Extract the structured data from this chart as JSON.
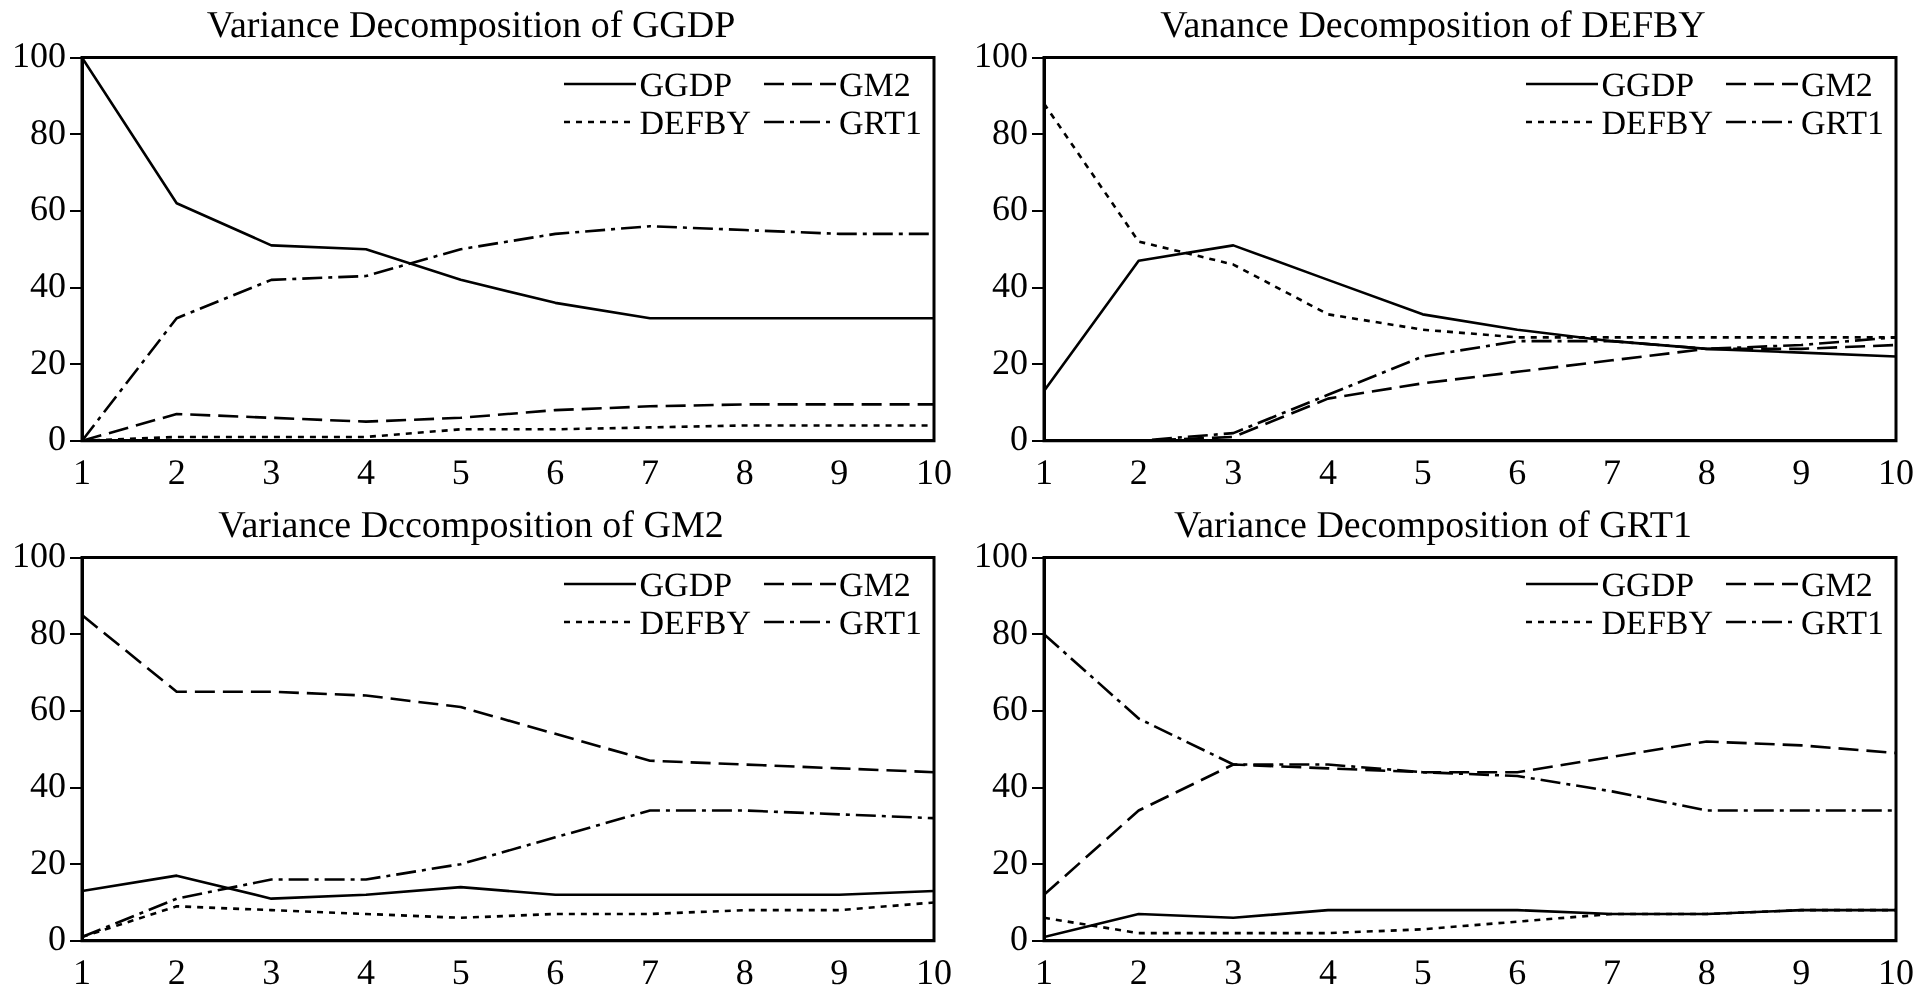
{
  "chart_data": [
    {
      "type": "line",
      "title": "Variance Decomposition of GGDP",
      "x": [
        1,
        2,
        3,
        4,
        5,
        6,
        7,
        8,
        9,
        10
      ],
      "xlim": [
        1,
        10
      ],
      "xticks": [
        1,
        2,
        3,
        4,
        5,
        6,
        7,
        8,
        9,
        10
      ],
      "ylim": [
        0,
        100
      ],
      "yticks": [
        0,
        20,
        40,
        60,
        80,
        100
      ],
      "grid": false,
      "legend": "top right",
      "marker": "none",
      "series": [
        {
          "name": "GGDP",
          "color": "#000000",
          "line_style": "solid",
          "values": [
            100,
            62,
            51,
            50,
            42,
            36,
            32,
            32,
            32,
            32
          ]
        },
        {
          "name": "GM2",
          "color": "#000000",
          "line_style": "dashed",
          "values": [
            0,
            7,
            6,
            5,
            6,
            8,
            9,
            9.5,
            9.5,
            9.5
          ]
        },
        {
          "name": "DEFBY",
          "color": "#000000",
          "line_style": "dotted",
          "values": [
            0,
            1,
            1,
            1,
            3,
            3,
            3.5,
            4,
            4,
            4
          ]
        },
        {
          "name": "GRT1",
          "color": "#000000",
          "line_style": "dashdot",
          "values": [
            0,
            32,
            42,
            43,
            50,
            54,
            56,
            55,
            54,
            54
          ]
        }
      ]
    },
    {
      "type": "line",
      "title": "Vanance Decomposition of DEFBY",
      "x": [
        1,
        2,
        3,
        4,
        5,
        6,
        7,
        8,
        9,
        10
      ],
      "xlim": [
        1,
        10
      ],
      "xticks": [
        1,
        2,
        3,
        4,
        5,
        6,
        7,
        8,
        9,
        10
      ],
      "ylim": [
        0,
        100
      ],
      "yticks": [
        0,
        20,
        40,
        60,
        80,
        100
      ],
      "grid": false,
      "legend": "top right",
      "marker": "none",
      "series": [
        {
          "name": "GGDP",
          "color": "#000000",
          "line_style": "solid",
          "values": [
            13,
            47,
            51,
            42,
            33,
            29,
            26,
            24,
            23,
            22
          ]
        },
        {
          "name": "GM2",
          "color": "#000000",
          "line_style": "dashed",
          "values": [
            0,
            0,
            1,
            11,
            15,
            18,
            21,
            24,
            24,
            25
          ]
        },
        {
          "name": "DEFBY",
          "color": "#000000",
          "line_style": "dotted",
          "values": [
            88,
            52,
            46,
            33,
            29,
            27,
            27,
            27,
            27,
            27
          ]
        },
        {
          "name": "GRT1",
          "color": "#000000",
          "line_style": "dashdot",
          "values": [
            0,
            0,
            2,
            12,
            22,
            26,
            26,
            24,
            25,
            27
          ]
        }
      ]
    },
    {
      "type": "line",
      "title": "Variance Dccomposition of GM2",
      "x": [
        1,
        2,
        3,
        4,
        5,
        6,
        7,
        8,
        9,
        10
      ],
      "xlim": [
        1,
        10
      ],
      "xticks": [
        1,
        2,
        3,
        4,
        5,
        6,
        7,
        8,
        9,
        10
      ],
      "ylim": [
        0,
        100
      ],
      "yticks": [
        0,
        20,
        40,
        60,
        80,
        100
      ],
      "grid": false,
      "legend": "top right",
      "marker": "none",
      "series": [
        {
          "name": "GGDP",
          "color": "#000000",
          "line_style": "solid",
          "values": [
            13,
            17,
            11,
            12,
            14,
            12,
            12,
            12,
            12,
            13
          ]
        },
        {
          "name": "GM2",
          "color": "#000000",
          "line_style": "dashed",
          "values": [
            85,
            65,
            65,
            64,
            61,
            54,
            47,
            46,
            45,
            44
          ]
        },
        {
          "name": "DEFBY",
          "color": "#000000",
          "line_style": "dotted",
          "values": [
            1,
            9,
            8,
            7,
            6,
            7,
            7,
            8,
            8,
            10
          ]
        },
        {
          "name": "GRT1",
          "color": "#000000",
          "line_style": "dashdot",
          "values": [
            1,
            11,
            16,
            16,
            20,
            27,
            34,
            34,
            33,
            32
          ]
        }
      ]
    },
    {
      "type": "line",
      "title": "Variance Decomposition of GRT1",
      "x": [
        1,
        2,
        3,
        4,
        5,
        6,
        7,
        8,
        9,
        10
      ],
      "xlim": [
        1,
        10
      ],
      "xticks": [
        1,
        2,
        3,
        4,
        5,
        6,
        7,
        8,
        9,
        10
      ],
      "ylim": [
        0,
        100
      ],
      "yticks": [
        0,
        20,
        40,
        60,
        80,
        100
      ],
      "grid": false,
      "legend": "top right",
      "marker": "none",
      "series": [
        {
          "name": "GGDP",
          "color": "#000000",
          "line_style": "solid",
          "values": [
            1,
            7,
            6,
            8,
            8,
            8,
            7,
            7,
            8,
            8
          ]
        },
        {
          "name": "GM2",
          "color": "#000000",
          "line_style": "dashed",
          "values": [
            12,
            34,
            46,
            45,
            44,
            44,
            48,
            52,
            51,
            49
          ]
        },
        {
          "name": "DEFBY",
          "color": "#000000",
          "line_style": "dotted",
          "values": [
            6,
            2,
            2,
            2,
            3,
            5,
            7,
            7,
            8,
            8
          ]
        },
        {
          "name": "GRT1",
          "color": "#000000",
          "line_style": "dashdot",
          "values": [
            80,
            58,
            46,
            46,
            44,
            43,
            39,
            34,
            34,
            34
          ]
        }
      ]
    }
  ]
}
